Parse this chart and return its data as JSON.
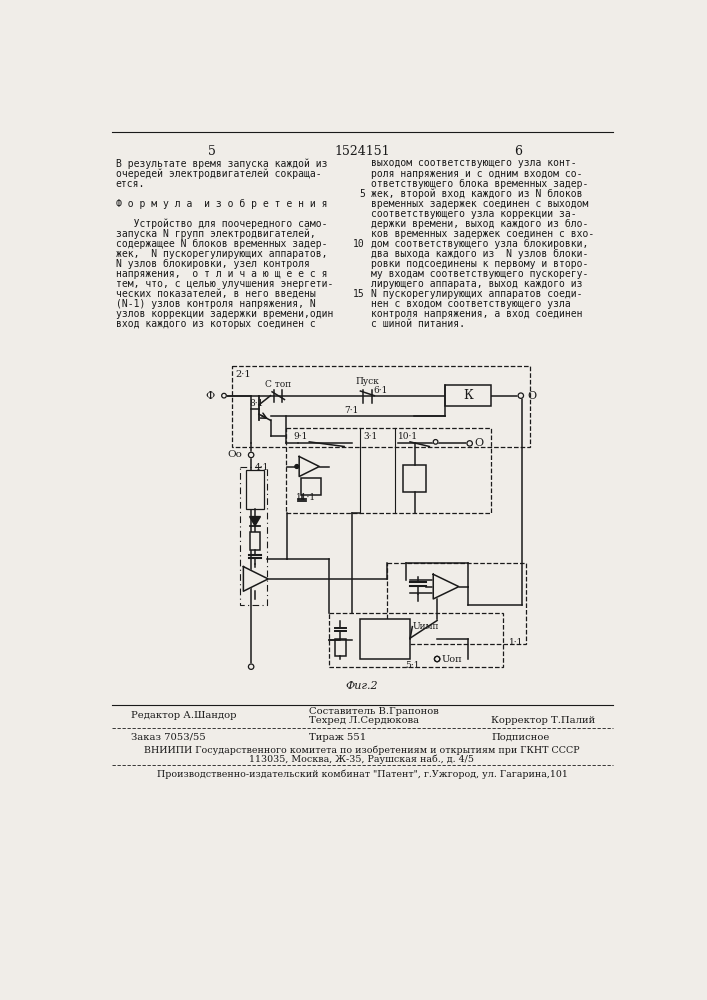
{
  "page_bg": "#f0ede8",
  "text_color": "#1a1a1a",
  "title_num": "1524151",
  "page_left": "5",
  "page_right": "6",
  "left_col_lines": [
    "В результате время запуска каждой из",
    "очередей электродвигателей сокраща-",
    "ется.",
    "",
    "Ф о р м у л а  и з о б р е т е н и я",
    "",
    "   Устройство для поочередного само-",
    "запуска N групп электродвигателей,",
    "содержащее N блоков временных задер-",
    "жек,  N пускорегулирующих аппаратов,",
    "N узлов блокировки, узел контроля",
    "напряжения,  о т л и ч а ю щ е е с я",
    "тем, что, с целью улучшения энергети-",
    "ческих показателей, в него введены",
    "(N-1) узлов контроля напряжения, N",
    "узлов коррекции задержки времени,один",
    "вход каждого из которых соединен с"
  ],
  "right_col_lines": [
    "выходом соответствующего узла конт-",
    "роля напряжения и с одним входом со-",
    "ответствующего блока временных задер-",
    "жек, второй вход каждого из N блоков",
    "временных задержек соединен с выходом",
    "соответствующего узла коррекции за-",
    "держки времени, выход каждого из бло-",
    "ков временных задержек соединен с вхо-",
    "дом соответствующего узла блокировки,",
    "два выхода каждого из  N узлов блоки-",
    "ровки подсоединены к первому и второ-",
    "му входам соответствующего пускорегу-",
    "лирующего аппарата, выход каждого из",
    "N пускорегулирующих аппаратов соеди-",
    "нен с входом соответствующего узла",
    "контроля напряжения, а вход соединен",
    "с шиной питания."
  ],
  "footer": {
    "col1_line1": "Редактор А.Шандор",
    "col2_line1": "Составитель В.Грапонов",
    "col2_line2": "Техред Л.Сердюкова",
    "col3_line1": "Корректор Т.Палий",
    "order_line": "Заказ 7053/55",
    "print_line": "Тираж 551",
    "sign_line": "Подписное",
    "vnipi_line1": "ВНИИПИ Государственного комитета по изобретениям и открытиям при ГКНТ СССР",
    "vnipi_line2": "113035, Москва, Ж-35, Раушская наб., д. 4/5",
    "factory_line": "Производственно-издательский комбинат \"Патент\", г.Ужгород, ул. Гагарина,101"
  },
  "fig_caption": "Фиг.2"
}
